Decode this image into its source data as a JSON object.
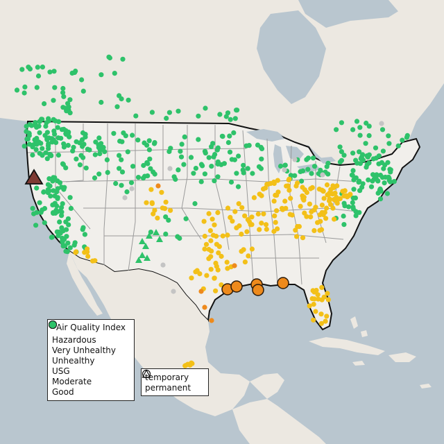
{
  "map": {
    "colors": {
      "water": "#b9c6cf",
      "land": "#ece8e1",
      "land_us": "#f1efeb",
      "border": "#111111",
      "state_lines": "#9a9a9a"
    },
    "categories": [
      {
        "key": "hazardous",
        "label": "Hazardous",
        "color": "#7f3b34"
      },
      {
        "key": "very_unhealthy",
        "label": "Very Unhealthy",
        "color": "#8e5ba8"
      },
      {
        "key": "unhealthy",
        "label": "Unhealthy",
        "color": "#e8452c"
      },
      {
        "key": "usg",
        "label": "USG",
        "color": "#ee8a1c"
      },
      {
        "key": "moderate",
        "label": "Moderate",
        "color": "#f3c018"
      },
      {
        "key": "good",
        "label": "Good",
        "color": "#2ec26a"
      },
      {
        "key": "no_data",
        "label": "",
        "color": "#c4c4c4"
      }
    ]
  },
  "legend_aqi": {
    "title": "Air Quality Index",
    "items": [
      {
        "label": "Hazardous",
        "color": "#7f3b34"
      },
      {
        "label": "Very Unhealthy",
        "color": "#8e5ba8"
      },
      {
        "label": "Unhealthy",
        "color": "#e8452c"
      },
      {
        "label": "USG",
        "color": "#ee8a1c"
      },
      {
        "label": "Moderate",
        "color": "#f3c018"
      },
      {
        "label": "Good",
        "color": "#2ec26a"
      }
    ]
  },
  "legend_type": {
    "items": [
      {
        "label": "temporary",
        "shape": "circle"
      },
      {
        "label": "permanent",
        "shape": "triangle"
      }
    ]
  }
}
